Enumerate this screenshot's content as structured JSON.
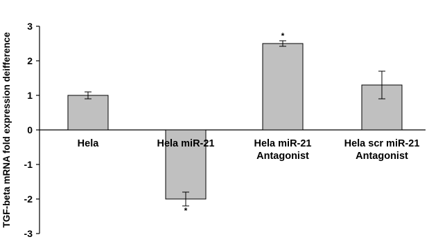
{
  "chart_data": {
    "type": "bar",
    "ylabel": "TGF-beta mRNA fold expression deifference",
    "xlabel": "",
    "ylim": [
      -3,
      3
    ],
    "yticks": [
      3,
      2,
      1,
      0,
      -1,
      -2,
      -3
    ],
    "categories": [
      [
        "Hela"
      ],
      [
        "Hela miR-21"
      ],
      [
        "Hela miR-21",
        "Antagonist"
      ],
      [
        "Hela scr miR-21",
        "Antagonist"
      ]
    ],
    "values": [
      1.0,
      -2.0,
      2.5,
      1.3
    ],
    "errors": [
      0.1,
      0.2,
      0.08,
      0.4
    ],
    "significance": [
      "",
      "*",
      "*",
      ""
    ],
    "bar_color": "#c0c0c0",
    "grid": false,
    "legend": "none"
  }
}
